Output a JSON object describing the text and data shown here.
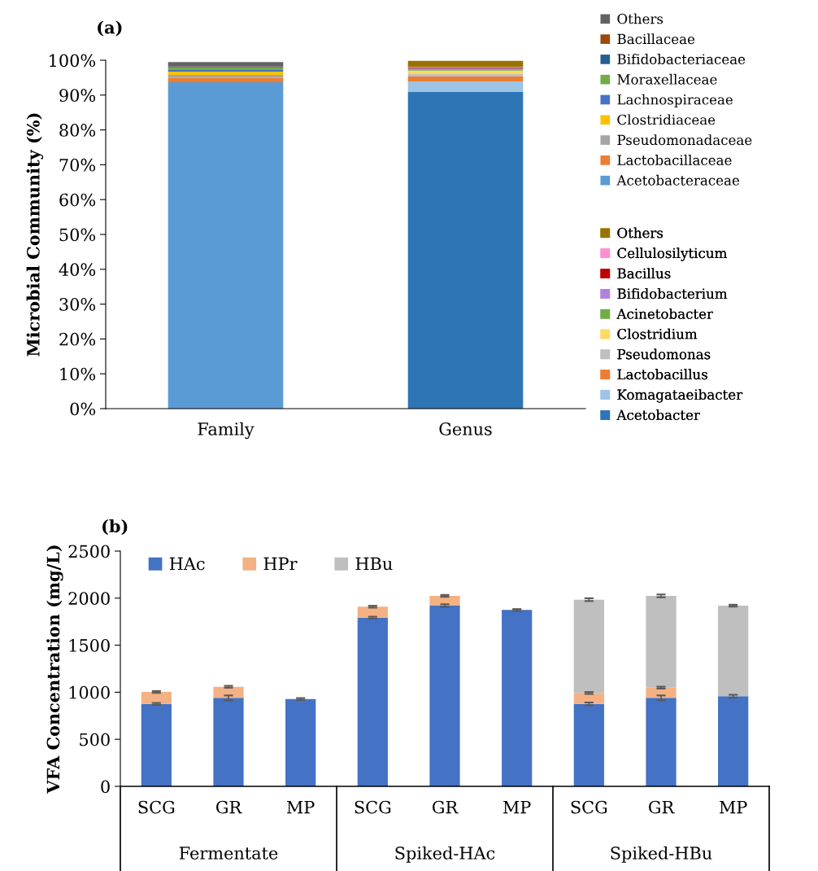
{
  "chart_data": [
    {
      "type": "bar",
      "title": "(a)",
      "ylabel": "Microbial Community (%)",
      "stacked": true,
      "legend": "right",
      "grid": false,
      "categories": [
        "Family",
        "Genus"
      ],
      "ylim": [
        0,
        100
      ],
      "yticks": [
        {
          "value": 0,
          "label": "0%"
        },
        {
          "value": 10,
          "label": "10%"
        },
        {
          "value": 20,
          "label": "20%"
        },
        {
          "value": 30,
          "label": "30%"
        },
        {
          "value": 40,
          "label": "40%"
        },
        {
          "value": 50,
          "label": "50%"
        },
        {
          "value": 60,
          "label": "60%"
        },
        {
          "value": 70,
          "label": "70%"
        },
        {
          "value": 80,
          "label": "80%"
        },
        {
          "value": 90,
          "label": "90%"
        },
        {
          "value": 100,
          "label": "100%"
        }
      ],
      "series": [
        {
          "name": "Acetobacteraceae",
          "color": "#5b9bd5",
          "values": [
            93.7,
            null
          ]
        },
        {
          "name": "Lactobacillaceae",
          "color": "#ed7d31",
          "values": [
            1.3,
            null
          ]
        },
        {
          "name": "Pseudomonadaceae",
          "color": "#a5a5a5",
          "values": [
            0.8,
            null
          ]
        },
        {
          "name": "Clostridiaceae",
          "color": "#ffc000",
          "values": [
            0.9,
            null
          ]
        },
        {
          "name": "Lachnospiraceae",
          "color": "#4472c4",
          "values": [
            0.5,
            null
          ]
        },
        {
          "name": "Moraxellaceae",
          "color": "#70ad47",
          "values": [
            0.7,
            null
          ]
        },
        {
          "name": "Bifidobacteriaceae",
          "color": "#255e91",
          "values": [
            0.2,
            null
          ]
        },
        {
          "name": "Bacillaceae",
          "color": "#9e480e",
          "values": [
            0.1,
            null
          ]
        },
        {
          "name": "Others",
          "color": "#636363",
          "values": [
            1.3,
            null
          ]
        },
        {
          "name": "Acetobacter",
          "color": "#2e75b6",
          "values": [
            null,
            90.9
          ]
        },
        {
          "name": "Komagataeibacter",
          "color": "#9dc3e6",
          "values": [
            null,
            3.0
          ]
        },
        {
          "name": "Lactobacillus",
          "color": "#ed7d31",
          "values": [
            null,
            1.4
          ]
        },
        {
          "name": "Pseudomonas",
          "color": "#bfbfbf",
          "values": [
            null,
            0.7
          ]
        },
        {
          "name": "Clostridium",
          "color": "#ffd966",
          "values": [
            null,
            1.0
          ]
        },
        {
          "name": "Acinetobacter",
          "color": "#70ad47",
          "values": [
            null,
            0.2
          ]
        },
        {
          "name": "Bifidobacterium",
          "color": "#b083dc",
          "values": [
            null,
            0.5
          ]
        },
        {
          "name": "Bacillus",
          "color": "#c00000",
          "values": [
            null,
            0.2
          ]
        },
        {
          "name": "Cellulosilyticum",
          "color": "#ff8fcf",
          "values": [
            null,
            0.2
          ]
        },
        {
          "name": "Others",
          "color": "#997300",
          "values": [
            null,
            1.7
          ]
        }
      ]
    },
    {
      "type": "bar",
      "title": "(b)",
      "ylabel": "VFA Concentration (mg/L)",
      "stacked": true,
      "legend": "top left",
      "grid": false,
      "categories": [
        "SCG",
        "GR",
        "MP",
        "SCG",
        "GR",
        "MP",
        "SCG",
        "GR",
        "MP"
      ],
      "annotations": [
        "Fermentate",
        "Spiked-HAc",
        "Spiked-HBu"
      ],
      "ylim": [
        0,
        2500
      ],
      "yticks": [
        0,
        500,
        1000,
        1500,
        2000,
        2500
      ],
      "series": [
        {
          "name": "HAc",
          "color": "#4472c4",
          "values": [
            876,
            940,
            928,
            1793,
            1920,
            1874,
            876,
            940,
            958
          ],
          "errors": [
            10,
            26,
            10,
            10,
            15,
            10,
            15,
            26,
            15
          ]
        },
        {
          "name": "HPr",
          "color": "#f4b183",
          "values": [
            127,
            118,
            null,
            116,
            104,
            null,
            116,
            109,
            null
          ],
          "errors": [
            10,
            10,
            null,
            10,
            10,
            null,
            10,
            10,
            null
          ]
        },
        {
          "name": "HBu",
          "color": "#bfbfbf",
          "values": [
            null,
            null,
            null,
            null,
            null,
            null,
            992,
            975,
            962
          ],
          "errors": [
            null,
            null,
            null,
            null,
            null,
            null,
            15,
            15,
            10
          ]
        }
      ]
    }
  ]
}
